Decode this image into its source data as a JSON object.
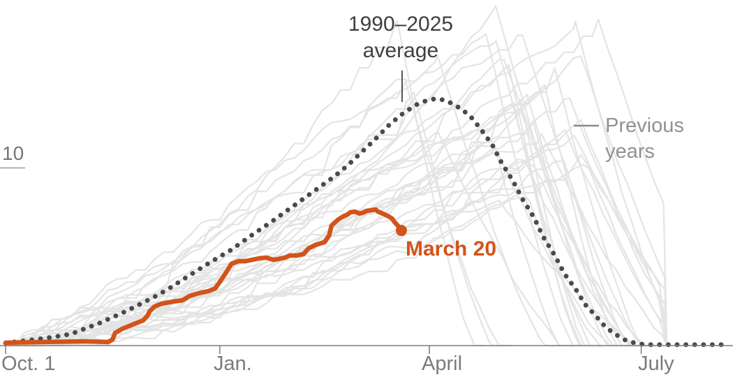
{
  "labels": {
    "title_line1": "1990–2025",
    "title_line2": "average",
    "legend_previous_line1": "Previous",
    "legend_previous_line2": "years",
    "current_annotation": "March 20",
    "y_tick": "10"
  },
  "colors": {
    "current_line": "#d2541a",
    "average_line": "#4a4a4a",
    "previous_lines": "#e4e4e4",
    "axis": "#7a7a7a",
    "title_text": "#3f3f3f",
    "legend_text": "#919191",
    "axis_text": "#7b7b7b"
  },
  "chart_data": {
    "type": "line",
    "x_unit": "days since Oct. 1",
    "x_range": [
      0,
      311
    ],
    "y_range": [
      0,
      19.6
    ],
    "y_ticks": [
      10
    ],
    "grid": false,
    "x_ticks": [
      {
        "label": "Oct. 1",
        "day": 0
      },
      {
        "label": "Jan.",
        "day": 92
      },
      {
        "label": "April",
        "day": 182
      },
      {
        "label": "July",
        "day": 273
      }
    ],
    "series": [
      {
        "name": "1990–2025 average",
        "style": "dotted",
        "points": [
          [
            0,
            0.15
          ],
          [
            10,
            0.3
          ],
          [
            19,
            0.45
          ],
          [
            28,
            0.65
          ],
          [
            34,
            0.95
          ],
          [
            40,
            1.25
          ],
          [
            46,
            1.6
          ],
          [
            52,
            1.95
          ],
          [
            58,
            2.35
          ],
          [
            64,
            2.75
          ],
          [
            70,
            3.2
          ],
          [
            76,
            3.7
          ],
          [
            82,
            4.2
          ],
          [
            88,
            4.7
          ],
          [
            97,
            5.4
          ],
          [
            105,
            6.15
          ],
          [
            114,
            6.95
          ],
          [
            123,
            7.8
          ],
          [
            132,
            8.65
          ],
          [
            141,
            9.5
          ],
          [
            147,
            10.15
          ],
          [
            153,
            10.9
          ],
          [
            159,
            11.65
          ],
          [
            165,
            12.45
          ],
          [
            171,
            13.1
          ],
          [
            177,
            13.6
          ],
          [
            181,
            13.8
          ],
          [
            185,
            13.9
          ],
          [
            189,
            13.8
          ],
          [
            192,
            13.6
          ],
          [
            196,
            13.3
          ],
          [
            200,
            12.85
          ],
          [
            204,
            12.2
          ],
          [
            209,
            11.3
          ],
          [
            213,
            10.3
          ],
          [
            218,
            9.25
          ],
          [
            222,
            8.25
          ],
          [
            227,
            7.2
          ],
          [
            231,
            6.1
          ],
          [
            236,
            5.05
          ],
          [
            240,
            4.05
          ],
          [
            245,
            3.15
          ],
          [
            249,
            2.3
          ],
          [
            254,
            1.6
          ],
          [
            258,
            1.0
          ],
          [
            263,
            0.55
          ],
          [
            267,
            0.25
          ],
          [
            272,
            0.1
          ],
          [
            276,
            0.05
          ],
          [
            310,
            0.05
          ]
        ]
      },
      {
        "name": "This season (through March 20)",
        "style": "solid",
        "end_label": "March 20",
        "points": [
          [
            0,
            0.16
          ],
          [
            16,
            0.2
          ],
          [
            34,
            0.24
          ],
          [
            44,
            0.2
          ],
          [
            46,
            0.35
          ],
          [
            47,
            0.71
          ],
          [
            50,
            0.94
          ],
          [
            53,
            1.1
          ],
          [
            56,
            1.26
          ],
          [
            59,
            1.41
          ],
          [
            61,
            1.69
          ],
          [
            62,
            1.96
          ],
          [
            64,
            2.2
          ],
          [
            67,
            2.36
          ],
          [
            72,
            2.48
          ],
          [
            76,
            2.55
          ],
          [
            79,
            2.79
          ],
          [
            83,
            2.95
          ],
          [
            87,
            3.06
          ],
          [
            90,
            3.22
          ],
          [
            92,
            3.58
          ],
          [
            95,
            4.17
          ],
          [
            97,
            4.6
          ],
          [
            100,
            4.75
          ],
          [
            103,
            4.75
          ],
          [
            106,
            4.83
          ],
          [
            109,
            4.91
          ],
          [
            112,
            4.95
          ],
          [
            115,
            4.83
          ],
          [
            117,
            4.87
          ],
          [
            120,
            4.95
          ],
          [
            122,
            5.07
          ],
          [
            125,
            5.07
          ],
          [
            128,
            5.15
          ],
          [
            130,
            5.46
          ],
          [
            133,
            5.66
          ],
          [
            135,
            5.74
          ],
          [
            137,
            5.82
          ],
          [
            139,
            6.21
          ],
          [
            140,
            6.76
          ],
          [
            143,
            7.11
          ],
          [
            145,
            7.27
          ],
          [
            147,
            7.39
          ],
          [
            148,
            7.5
          ],
          [
            150,
            7.54
          ],
          [
            152,
            7.43
          ],
          [
            154,
            7.5
          ],
          [
            155,
            7.58
          ],
          [
            157,
            7.62
          ],
          [
            159,
            7.66
          ],
          [
            160,
            7.54
          ],
          [
            162,
            7.43
          ],
          [
            164,
            7.31
          ],
          [
            166,
            7.15
          ],
          [
            167,
            6.96
          ],
          [
            169,
            6.68
          ],
          [
            170,
            6.48
          ]
        ]
      },
      {
        "name": "Previous years",
        "style": "spaghetti",
        "count": 35,
        "seed": 42,
        "peak_day_range": [
          168,
          256
        ],
        "peak_value_range": [
          6.5,
          19.5
        ],
        "fall_days_range": [
          26,
          58
        ],
        "max_day": 284
      }
    ]
  }
}
